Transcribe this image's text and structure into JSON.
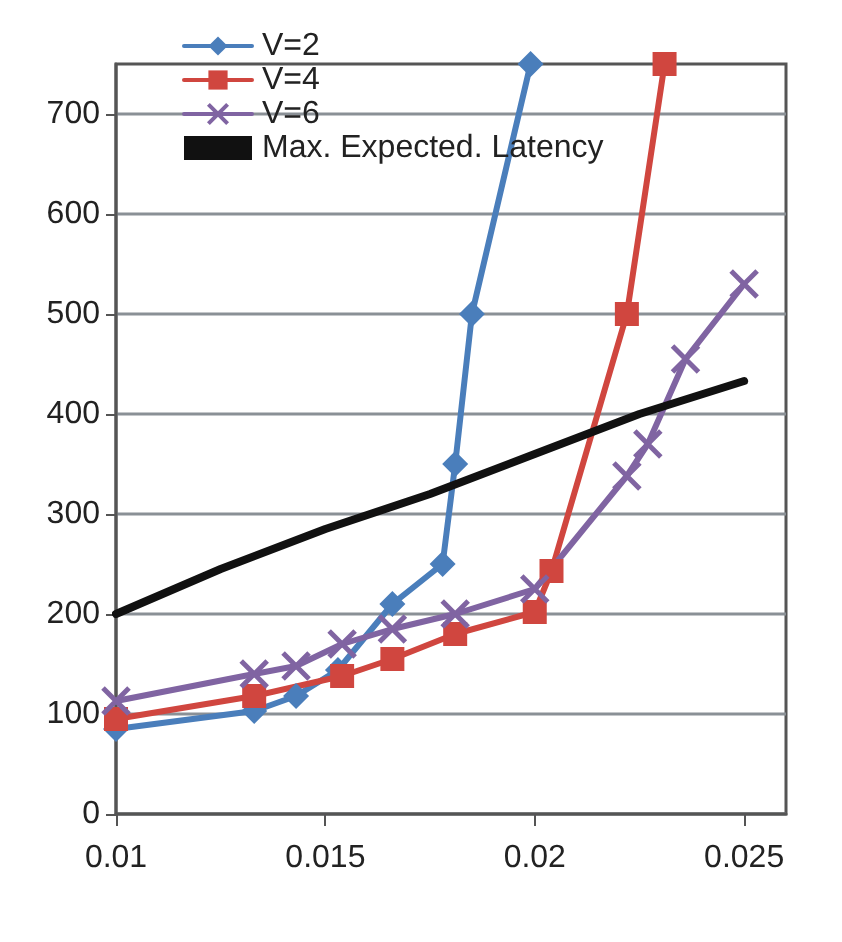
{
  "chart_data": {
    "type": "line",
    "xlim": [
      0.01,
      0.026
    ],
    "xticks": [
      0.01,
      0.015,
      0.02,
      0.025
    ],
    "ylim": [
      0,
      750
    ],
    "yticks": [
      0,
      100,
      200,
      300,
      400,
      500,
      600,
      700
    ],
    "grid": "y",
    "legend": "top left",
    "series": [
      {
        "name": "V=2",
        "color": "#4a7ebb",
        "marker": "diamond",
        "x": [
          0.01,
          0.0133,
          0.0143,
          0.0153,
          0.0166,
          0.0178,
          0.0181,
          0.0185,
          0.0199
        ],
        "values": [
          85,
          103,
          118,
          144,
          210,
          250,
          350,
          500,
          750
        ]
      },
      {
        "name": "V=4",
        "color": "#d0463f",
        "marker": "square",
        "x": [
          0.01,
          0.0133,
          0.0154,
          0.0166,
          0.0181,
          0.02,
          0.0204,
          0.0222,
          0.0231
        ],
        "values": [
          95,
          118,
          138,
          155,
          180,
          202,
          243,
          500,
          750
        ]
      },
      {
        "name": "V=6",
        "color": "#8064a2",
        "marker": "cross",
        "x": [
          0.01,
          0.0133,
          0.0143,
          0.0154,
          0.0166,
          0.0181,
          0.02,
          0.0222,
          0.0227,
          0.0236,
          0.025
        ],
        "values": [
          113,
          140,
          148,
          170,
          185,
          200,
          225,
          338,
          370,
          455,
          530
        ]
      },
      {
        "name": "Max. Expected. Latency",
        "color": "#111111",
        "marker": "none",
        "x": [
          0.01,
          0.0125,
          0.015,
          0.0175,
          0.02,
          0.0225,
          0.025
        ],
        "values": [
          200,
          245,
          285,
          320,
          360,
          400,
          433
        ]
      }
    ]
  }
}
